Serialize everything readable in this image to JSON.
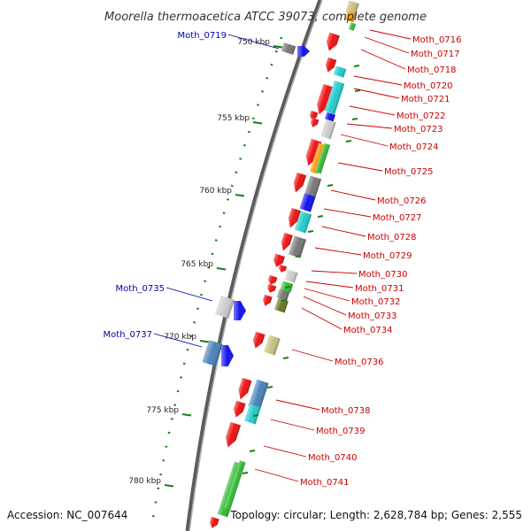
{
  "title": "Moorella thermoacetica ATCC 39073, complete genome",
  "accession": "Accession: NC_007644",
  "topology": "Topology: circular; Length: 2,628,784 bp; Genes: 2,555",
  "colors": {
    "forward_label": "#cc0000",
    "reverse_label": "#0000aa",
    "backbone": "#808080",
    "tick": "#1a7f1a",
    "red": "#ee1111",
    "blue": "#1111ee",
    "cyan": "#22cccc",
    "gray": "#777777",
    "silver": "#cccccc",
    "green": "#33bb33",
    "olive": "#667722",
    "khaki": "#c8c080",
    "orange": "#ff9900",
    "steel": "#4a82b8"
  },
  "ticks": [
    {
      "label": "750 kbp"
    },
    {
      "label": "755 kbp"
    },
    {
      "label": "760 kbp"
    },
    {
      "label": "765 kbp"
    },
    {
      "label": "770 kbp"
    },
    {
      "label": "775 kbp"
    },
    {
      "label": "780 kbp"
    }
  ],
  "gene_labels": [
    {
      "text": "Moth_0719",
      "strand": "reverse"
    },
    {
      "text": "Moth_0735",
      "strand": "reverse"
    },
    {
      "text": "Moth_0737",
      "strand": "reverse"
    },
    {
      "text": "Moth_0716",
      "strand": "forward"
    },
    {
      "text": "Moth_0717",
      "strand": "forward"
    },
    {
      "text": "Moth_0718",
      "strand": "forward"
    },
    {
      "text": "Moth_0720",
      "strand": "forward"
    },
    {
      "text": "Moth_0721",
      "strand": "forward"
    },
    {
      "text": "Moth_0722",
      "strand": "forward"
    },
    {
      "text": "Moth_0723",
      "strand": "forward"
    },
    {
      "text": "Moth_0724",
      "strand": "forward"
    },
    {
      "text": "Moth_0725",
      "strand": "forward"
    },
    {
      "text": "Moth_0726",
      "strand": "forward"
    },
    {
      "text": "Moth_0727",
      "strand": "forward"
    },
    {
      "text": "Moth_0728",
      "strand": "forward"
    },
    {
      "text": "Moth_0729",
      "strand": "forward"
    },
    {
      "text": "Moth_0730",
      "strand": "forward"
    },
    {
      "text": "Moth_0731",
      "strand": "forward"
    },
    {
      "text": "Moth_0732",
      "strand": "forward"
    },
    {
      "text": "Moth_0733",
      "strand": "forward"
    },
    {
      "text": "Moth_0734",
      "strand": "forward"
    },
    {
      "text": "Moth_0736",
      "strand": "forward"
    },
    {
      "text": "Moth_0738",
      "strand": "forward"
    },
    {
      "text": "Moth_0739",
      "strand": "forward"
    },
    {
      "text": "Moth_0740",
      "strand": "forward"
    },
    {
      "text": "Moth_0741",
      "strand": "forward"
    }
  ]
}
